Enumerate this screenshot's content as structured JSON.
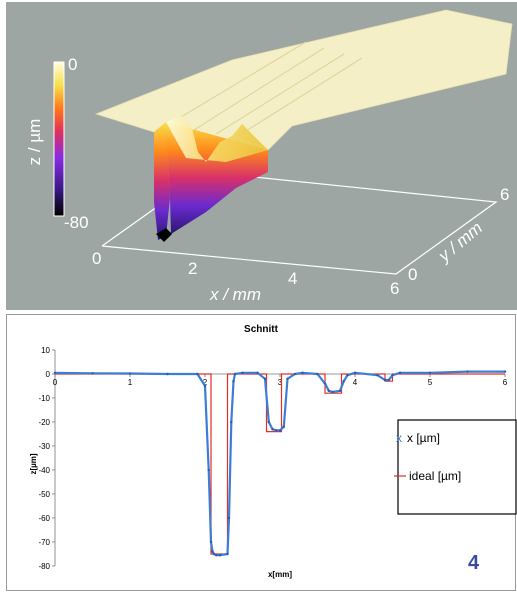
{
  "colors": {
    "top_background": "#9ea6a3",
    "surface_top": "#f4efc6",
    "line_measured": "#3b7dd8",
    "line_ideal": "#e0302a",
    "label_number": "#3a4aa0"
  },
  "surface_plot": {
    "type": "3d-surface",
    "z_axis": {
      "label": "z / µm",
      "max_label": "0",
      "min_label": "-80"
    },
    "x_axis": {
      "label": "x / mm",
      "ticks": [
        "0",
        "2",
        "4",
        "6"
      ]
    },
    "y_axis": {
      "label": "y / mm",
      "ticks": [
        "0",
        "6"
      ]
    },
    "colormap": [
      "#000000",
      "#3a1a8a",
      "#8a2be2",
      "#e0305a",
      "#ff7a1a",
      "#f8e04a",
      "#fffde0"
    ]
  },
  "chart_data": {
    "type": "line",
    "title": "Schnitt",
    "xlabel": "x[mm]",
    "ylabel": "z[µm]",
    "xlim": [
      0,
      6
    ],
    "ylim": [
      -80,
      10
    ],
    "x_ticks": [
      "0",
      "1",
      "2",
      "3",
      "4",
      "5",
      "6"
    ],
    "y_ticks": [
      "10",
      "0",
      "-10",
      "-20",
      "-30",
      "-40",
      "-50",
      "-60",
      "-70",
      "-80"
    ],
    "legend_position": "right",
    "series": [
      {
        "name": "x [µm]",
        "style": "markers",
        "x": [
          0,
          0.5,
          1.0,
          1.5,
          1.9,
          2.0,
          2.05,
          2.08,
          2.1,
          2.12,
          2.15,
          2.2,
          2.3,
          2.32,
          2.35,
          2.38,
          2.4,
          2.5,
          2.7,
          2.8,
          2.85,
          2.9,
          2.95,
          3.0,
          3.05,
          3.1,
          3.2,
          3.3,
          3.5,
          3.6,
          3.65,
          3.7,
          3.8,
          3.85,
          3.9,
          4.0,
          4.3,
          4.4,
          4.45,
          4.5,
          4.6,
          5.0,
          5.5,
          6.0
        ],
        "y": [
          0.5,
          0.3,
          0.2,
          0,
          0,
          -5,
          -40,
          -70,
          -74,
          -75,
          -75.5,
          -75.5,
          -75,
          -60,
          -20,
          -3,
          0,
          0.5,
          0.5,
          -2,
          -20,
          -23,
          -23.5,
          -23.5,
          -22,
          -2,
          0,
          0.5,
          0,
          -4,
          -7,
          -7.5,
          -7,
          -3,
          -0.5,
          0.5,
          -0.5,
          -2.5,
          -2.5,
          -0.5,
          0.5,
          0.5,
          1,
          1
        ]
      },
      {
        "name": "ideal [µm]",
        "style": "line",
        "x": [
          0,
          2.08,
          2.08,
          2.3,
          2.3,
          2.82,
          2.82,
          3.02,
          3.02,
          3.6,
          3.6,
          3.82,
          3.82,
          4.4,
          4.4,
          4.5,
          4.5,
          6.0
        ],
        "y": [
          0,
          0,
          -75,
          -75,
          0,
          0,
          -24,
          -24,
          0,
          0,
          -8,
          -8,
          0,
          0,
          -3,
          -3,
          0,
          0
        ]
      }
    ],
    "legend": [
      "x [µm]",
      "ideal [µm]"
    ]
  },
  "corner_label": "4"
}
